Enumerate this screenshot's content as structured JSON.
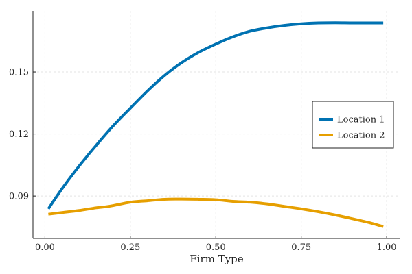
{
  "chart_data": {
    "type": "line",
    "title": "",
    "xlabel": "Firm Type",
    "ylabel": "",
    "xlim": [
      -0.035,
      1.04
    ],
    "ylim": [
      0.0695,
      0.1795
    ],
    "xticks": [
      0.0,
      0.25,
      0.5,
      0.75,
      1.0
    ],
    "xtick_labels": [
      "0.00",
      "0.25",
      "0.50",
      "0.75",
      "1.00"
    ],
    "yticks": [
      0.09,
      0.12,
      0.15
    ],
    "ytick_labels": [
      "0.09",
      "0.12",
      "0.15"
    ],
    "grid": true,
    "legend_position": "right",
    "series": [
      {
        "name": "Location 1",
        "color": "#0072b2",
        "x": [
          0.01,
          0.05,
          0.1,
          0.15,
          0.2,
          0.25,
          0.3,
          0.35,
          0.4,
          0.45,
          0.5,
          0.55,
          0.6,
          0.65,
          0.7,
          0.75,
          0.8,
          0.85,
          0.9,
          0.95,
          0.99
        ],
        "values": [
          0.0838,
          0.0935,
          0.1045,
          0.1145,
          0.124,
          0.1325,
          0.1408,
          0.1483,
          0.1545,
          0.1595,
          0.1635,
          0.167,
          0.1697,
          0.1713,
          0.1725,
          0.1733,
          0.1737,
          0.1738,
          0.1737,
          0.1737,
          0.1737
        ]
      },
      {
        "name": "Location 2",
        "color": "#e69f00",
        "x": [
          0.01,
          0.05,
          0.1,
          0.15,
          0.19,
          0.25,
          0.3,
          0.35,
          0.4,
          0.45,
          0.5,
          0.55,
          0.6,
          0.65,
          0.7,
          0.75,
          0.8,
          0.85,
          0.9,
          0.95,
          0.99
        ],
        "values": [
          0.0812,
          0.082,
          0.083,
          0.0843,
          0.0851,
          0.087,
          0.0877,
          0.0884,
          0.0885,
          0.0884,
          0.0882,
          0.0874,
          0.087,
          0.0862,
          0.085,
          0.0838,
          0.0824,
          0.0808,
          0.079,
          0.0771,
          0.0752
        ]
      }
    ]
  }
}
